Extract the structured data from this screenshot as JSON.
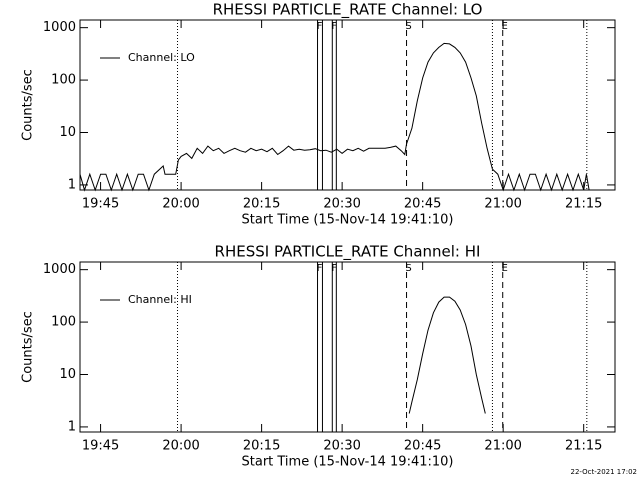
{
  "chart_data": [
    {
      "type": "line",
      "title": "RHESSI PARTICLE_RATE Channel: LO",
      "x_label": "Start Time (15-Nov-14 19:41:10)",
      "y_label": "Counts/sec",
      "log_y": true,
      "legend": "top-left",
      "xlim": [
        "19:41:10",
        "21:20:50"
      ],
      "ylim": [
        0.8,
        1400
      ],
      "xticks": [
        "19:45",
        "20:00",
        "20:15",
        "20:30",
        "20:45",
        "21:00",
        "21:15"
      ],
      "yticks": [
        1,
        10,
        100,
        1000
      ],
      "markers": [
        {
          "x": "19:59:20",
          "style": "dotted"
        },
        {
          "x": "20:25:25",
          "style": "solid",
          "label": "F"
        },
        {
          "x": "20:26:20",
          "style": "solid"
        },
        {
          "x": "20:28:10",
          "style": "solid",
          "label": "F"
        },
        {
          "x": "20:28:55",
          "style": "solid"
        },
        {
          "x": "20:42:00",
          "style": "dashed",
          "label": "S"
        },
        {
          "x": "20:58:00",
          "style": "dotted"
        },
        {
          "x": "20:59:55",
          "style": "dashed",
          "label": "E"
        },
        {
          "x": "21:15:35",
          "style": "dotted"
        }
      ],
      "x": [
        "19:41:10",
        "19:42",
        "19:43",
        "19:44",
        "19:45",
        "19:46",
        "19:47",
        "19:48",
        "19:49",
        "19:50",
        "19:51",
        "19:52",
        "19:53",
        "19:54",
        "19:55",
        "19:56:40",
        "19:57",
        "19:58",
        "19:59",
        "19:59:30",
        "20:00",
        "20:01",
        "20:02",
        "20:03",
        "20:04",
        "20:05",
        "20:06",
        "20:07",
        "20:08",
        "20:09",
        "20:10",
        "20:11",
        "20:12",
        "20:13",
        "20:14",
        "20:15",
        "20:16",
        "20:17",
        "20:18",
        "20:19",
        "20:20",
        "20:21",
        "20:22",
        "20:23",
        "20:24",
        "20:25",
        "20:26",
        "20:27",
        "20:28",
        "20:29",
        "20:30",
        "20:31",
        "20:32",
        "20:33",
        "20:34",
        "20:35",
        "20:36",
        "20:37",
        "20:38",
        "20:39",
        "20:40",
        "20:41",
        "20:41:40",
        "20:42",
        "20:43",
        "20:44",
        "20:45",
        "20:46",
        "20:47",
        "20:48",
        "20:49",
        "20:50",
        "20:51",
        "20:52",
        "20:53",
        "20:54",
        "20:55",
        "20:56",
        "20:57",
        "20:58",
        "20:59",
        "21:00",
        "21:01",
        "21:02",
        "21:03",
        "21:04",
        "21:05",
        "21:06",
        "21:07",
        "21:08",
        "21:09",
        "21:10",
        "21:11",
        "21:12",
        "21:13",
        "21:14",
        "21:15",
        "21:15:30",
        "21:16",
        "21:20:50"
      ],
      "series": [
        {
          "name": "Channel: LO",
          "color": "#000000",
          "values": [
            1.6,
            0.8,
            1.6,
            0.8,
            1.6,
            1.6,
            0.8,
            1.6,
            0.8,
            1.6,
            0.8,
            1.6,
            1.6,
            0.8,
            1.6,
            2.3,
            1.6,
            1.6,
            1.6,
            3.0,
            3.5,
            4,
            3.2,
            5,
            4,
            5.5,
            4.5,
            5,
            4,
            4.5,
            5,
            4.5,
            4.2,
            5,
            4.5,
            4.8,
            4.3,
            5,
            3.8,
            4.5,
            5.5,
            4.6,
            4.8,
            4.6,
            4.7,
            4.9,
            4.5,
            4.6,
            4.2,
            4.8,
            4,
            4.8,
            4.5,
            5,
            4.4,
            5,
            5,
            5,
            5,
            5.2,
            5.5,
            4.5,
            3.8,
            6,
            12,
            40,
            110,
            220,
            330,
            420,
            500,
            490,
            420,
            330,
            220,
            110,
            50,
            15,
            5,
            2,
            1.6,
            0.8,
            1.6,
            0.8,
            1.6,
            0.8,
            1.6,
            1.6,
            0.8,
            1.6,
            0.8,
            1.6,
            0.8,
            1.6,
            0.8,
            1.6,
            0.8,
            1.6,
            0.8,
            0.8
          ]
        }
      ]
    },
    {
      "type": "line",
      "title": "RHESSI PARTICLE_RATE Channel: HI",
      "x_label": "Start Time (15-Nov-14 19:41:10)",
      "y_label": "Counts/sec",
      "log_y": true,
      "legend": "top-left",
      "xlim": [
        "19:41:10",
        "21:20:50"
      ],
      "ylim": [
        0.8,
        1400
      ],
      "xticks": [
        "19:45",
        "20:00",
        "20:15",
        "20:30",
        "20:45",
        "21:00",
        "21:15"
      ],
      "yticks": [
        1,
        10,
        100,
        1000
      ],
      "markers": [
        {
          "x": "19:59:20",
          "style": "dotted"
        },
        {
          "x": "20:25:25",
          "style": "solid",
          "label": "F"
        },
        {
          "x": "20:26:20",
          "style": "solid"
        },
        {
          "x": "20:28:10",
          "style": "solid",
          "label": "F"
        },
        {
          "x": "20:28:55",
          "style": "solid"
        },
        {
          "x": "20:42:00",
          "style": "dashed",
          "label": "S"
        },
        {
          "x": "20:58:00",
          "style": "dotted"
        },
        {
          "x": "20:59:55",
          "style": "dashed",
          "label": "E"
        },
        {
          "x": "21:15:35",
          "style": "dotted"
        }
      ],
      "x": [
        "20:42:30",
        "20:43",
        "20:44",
        "20:45",
        "20:46",
        "20:47",
        "20:48",
        "20:49",
        "20:50",
        "20:51",
        "20:52",
        "20:53",
        "20:54",
        "20:55",
        "20:56",
        "20:56:40"
      ],
      "series": [
        {
          "name": "Channel: HI",
          "color": "#000000",
          "values": [
            1.8,
            3,
            8,
            25,
            70,
            150,
            240,
            300,
            300,
            250,
            170,
            90,
            35,
            10,
            3.5,
            1.8
          ]
        }
      ]
    }
  ],
  "footer": "22-Oct-2021 17:02"
}
